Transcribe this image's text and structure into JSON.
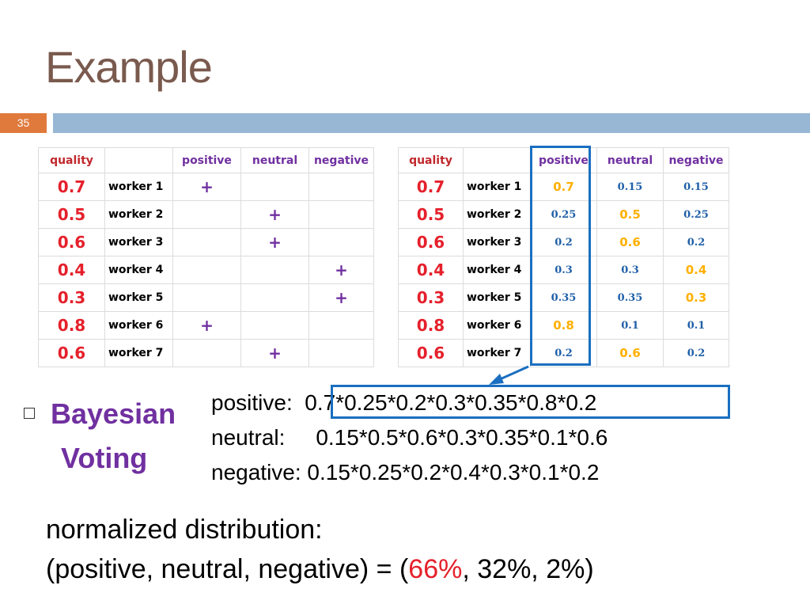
{
  "slide": {
    "title": "Example",
    "number": "35"
  },
  "left_table": {
    "headers": [
      "quality",
      "",
      "positive",
      "neutral",
      "negative"
    ],
    "rows": [
      {
        "quality": "0.7",
        "worker": "worker 1",
        "positive": "+",
        "neutral": "",
        "negative": ""
      },
      {
        "quality": "0.5",
        "worker": "worker 2",
        "positive": "",
        "neutral": "+",
        "negative": ""
      },
      {
        "quality": "0.6",
        "worker": "worker 3",
        "positive": "",
        "neutral": "+",
        "negative": ""
      },
      {
        "quality": "0.4",
        "worker": "worker 4",
        "positive": "",
        "neutral": "",
        "negative": "+"
      },
      {
        "quality": "0.3",
        "worker": "worker 5",
        "positive": "",
        "neutral": "",
        "negative": "+"
      },
      {
        "quality": "0.8",
        "worker": "worker 6",
        "positive": "+",
        "neutral": "",
        "negative": ""
      },
      {
        "quality": "0.6",
        "worker": "worker 7",
        "positive": "",
        "neutral": "+",
        "negative": ""
      }
    ]
  },
  "right_table": {
    "headers": [
      "quality",
      "",
      "positive",
      "neutral",
      "negative"
    ],
    "rows": [
      {
        "quality": "0.7",
        "worker": "worker 1",
        "positive": "0.7",
        "neutral": "0.15",
        "negative": "0.15"
      },
      {
        "quality": "0.5",
        "worker": "worker 2",
        "positive": "0.25",
        "neutral": "0.5",
        "negative": "0.25"
      },
      {
        "quality": "0.6",
        "worker": "worker 3",
        "positive": "0.2",
        "neutral": "0.6",
        "negative": "0.2"
      },
      {
        "quality": "0.4",
        "worker": "worker 4",
        "positive": "0.3",
        "neutral": "0.3",
        "negative": "0.4"
      },
      {
        "quality": "0.3",
        "worker": "worker 5",
        "positive": "0.35",
        "neutral": "0.35",
        "negative": "0.3"
      },
      {
        "quality": "0.8",
        "worker": "worker 6",
        "positive": "0.8",
        "neutral": "0.1",
        "negative": "0.1"
      },
      {
        "quality": "0.6",
        "worker": "worker 7",
        "positive": "0.2",
        "neutral": "0.6",
        "negative": "0.2"
      }
    ],
    "voted_column": [
      "positive",
      "neutral",
      "neutral",
      "negative",
      "negative",
      "positive",
      "neutral"
    ]
  },
  "bullet": {
    "line1": "Bayesian",
    "line2": "Voting"
  },
  "equations": {
    "positive_label": "positive:",
    "positive_expr": "0.7*0.25*0.2*0.3*0.35*0.8*0.2",
    "neutral_label": "neutral:",
    "neutral_expr": "0.15*0.5*0.6*0.3*0.35*0.1*0.6",
    "negative_label": "negative:",
    "negative_expr": "0.15*0.25*0.2*0.4*0.3*0.1*0.2"
  },
  "normalized": {
    "line1": "normalized distribution:",
    "prefix": "(positive, neutral, negative) = (",
    "positive_pct": "66%",
    "rest": ", 32%, 2%)"
  },
  "colors": {
    "title": "#7a5a4e",
    "slide_number_bg": "#e07a3c",
    "top_bar": "#97b7d5",
    "quality": "#e5202b",
    "header_purple": "#7030a0",
    "voted_value": "#ffb000",
    "other_value": "#1f5fa8",
    "highlight_box": "#1a6fc0"
  }
}
